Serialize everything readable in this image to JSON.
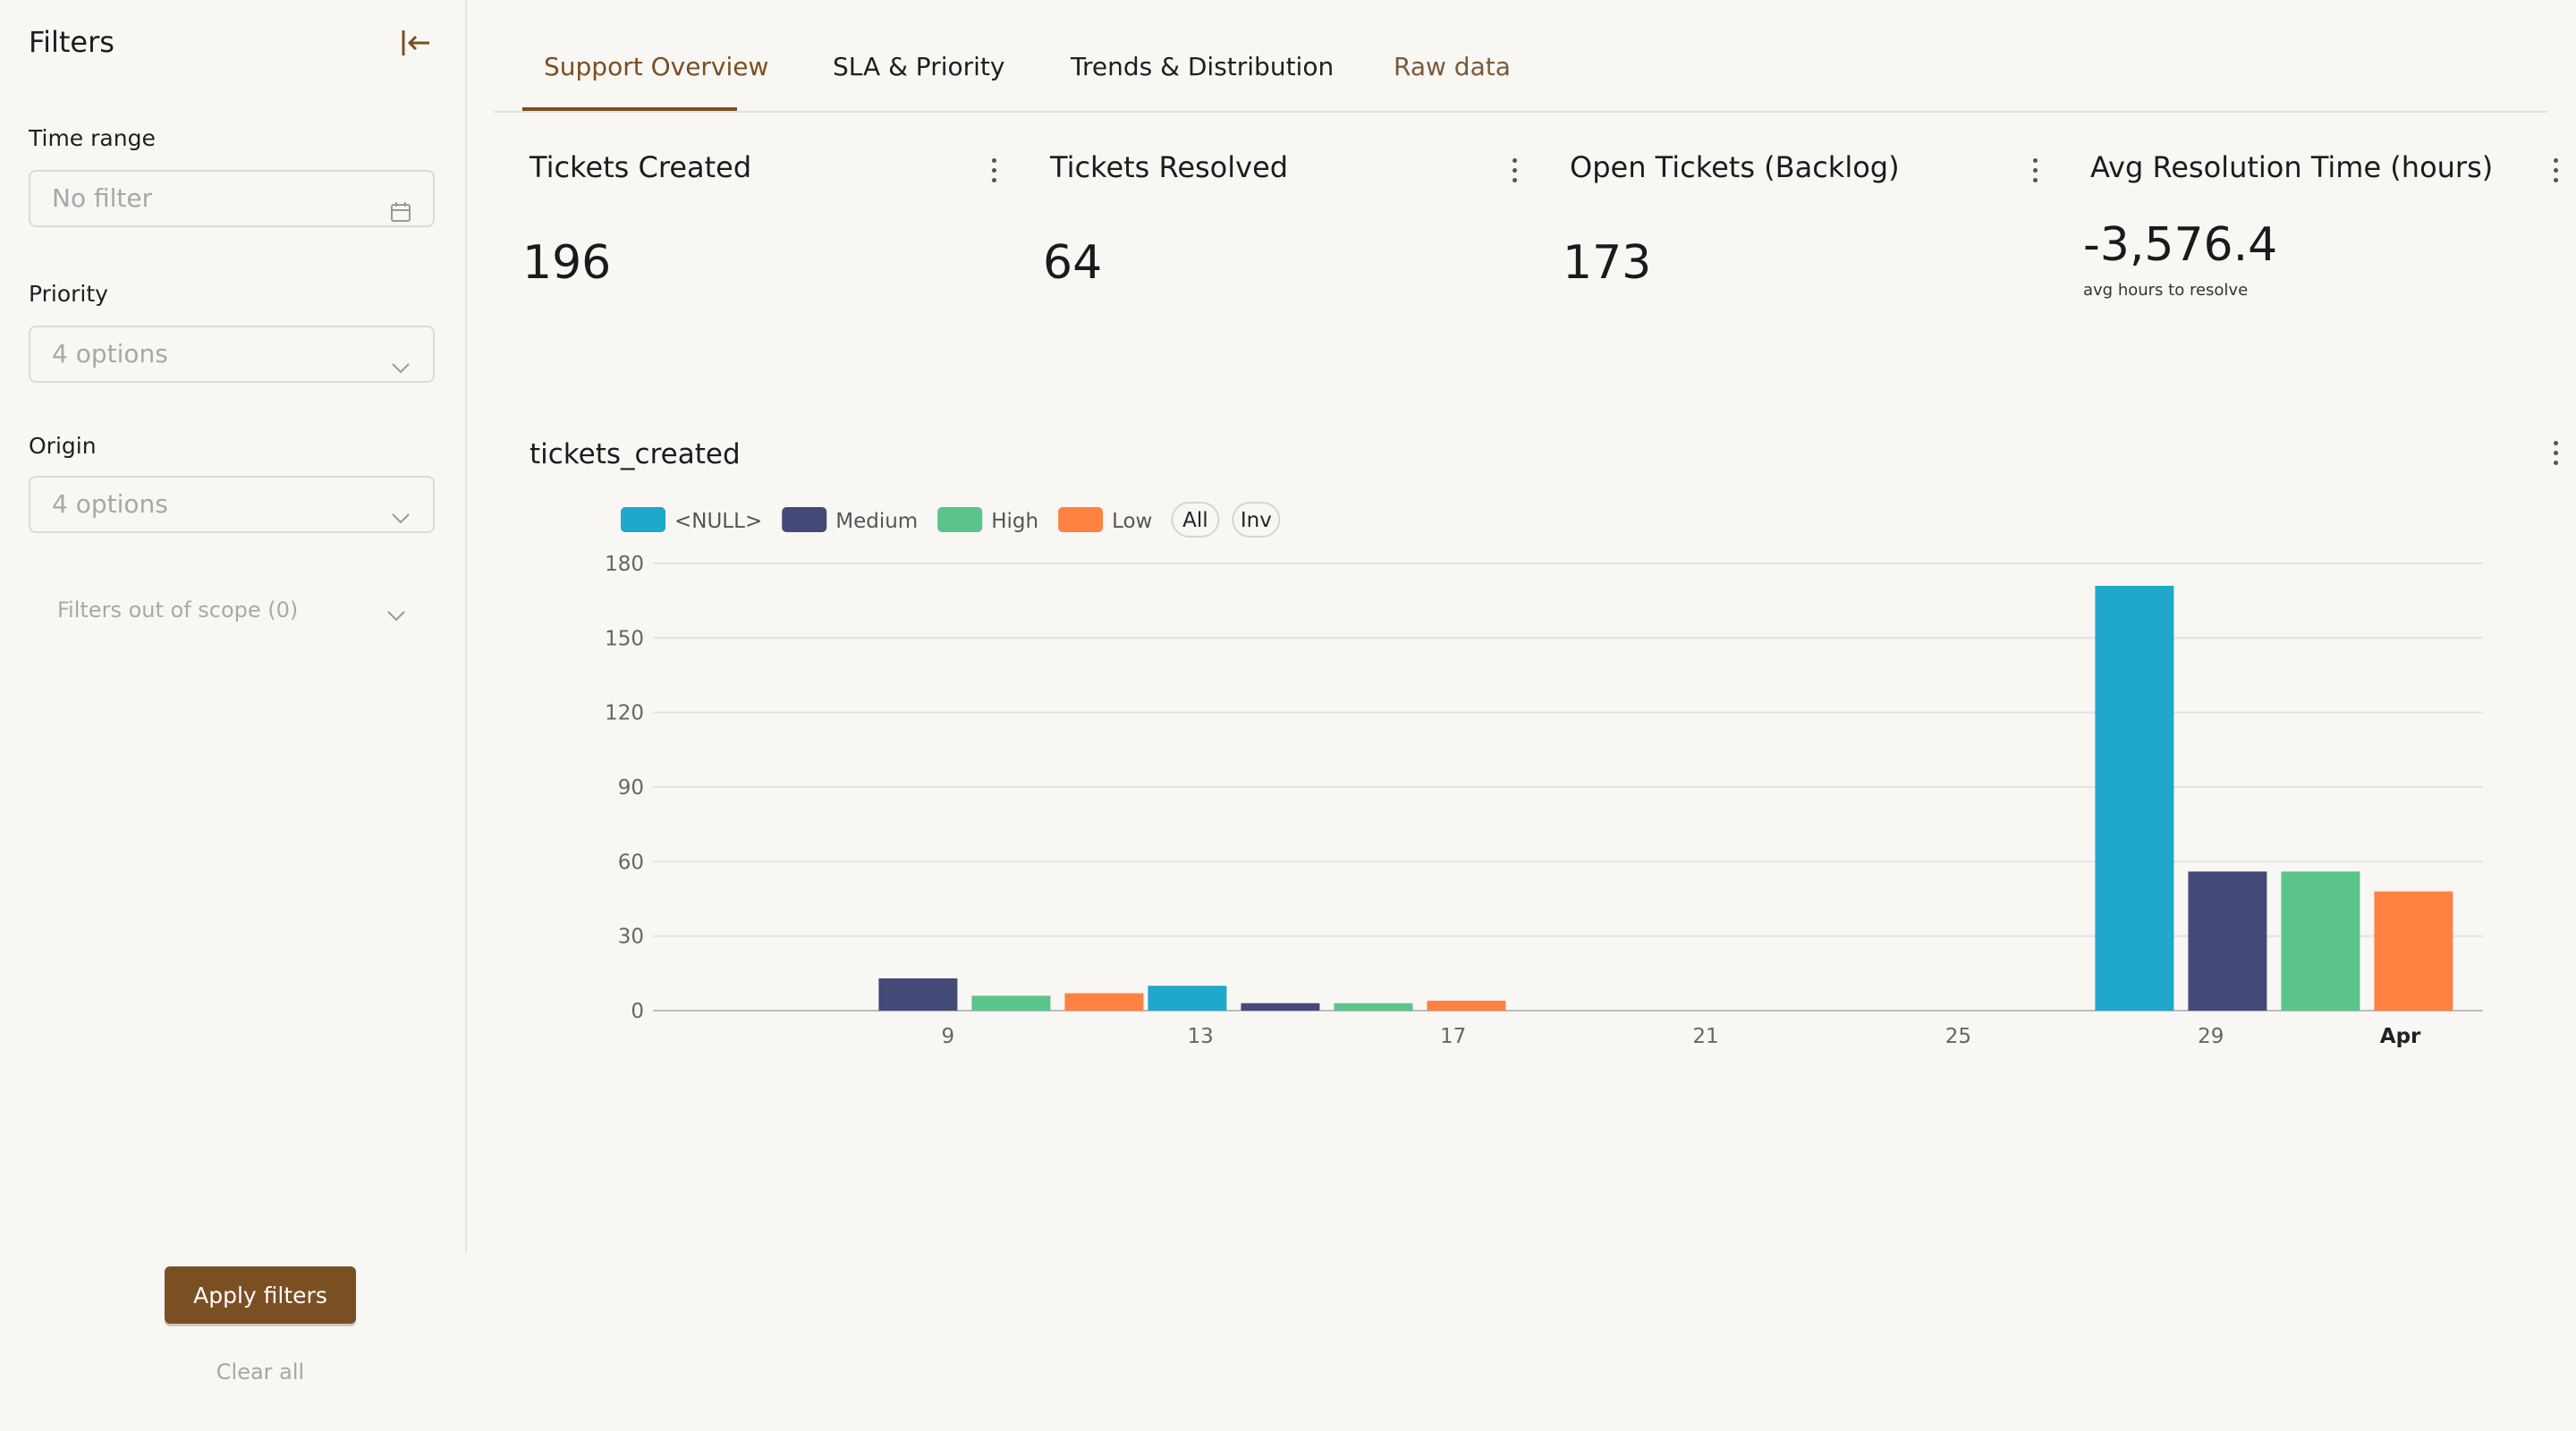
{
  "sidebar": {
    "title": "Filters",
    "filters": [
      {
        "label": "Time range",
        "placeholder": "No filter",
        "icon": "calendar-icon"
      },
      {
        "label": "Priority",
        "placeholder": "4 options",
        "icon": "chevron-down-icon"
      },
      {
        "label": "Origin",
        "placeholder": "4 options",
        "icon": "chevron-down-icon"
      }
    ],
    "out_of_scope": "Filters out of scope (0)",
    "apply_label": "Apply filters",
    "clear_label": "Clear all"
  },
  "tabs": [
    {
      "label": "Support Overview",
      "active": true
    },
    {
      "label": "SLA & Priority",
      "active": false
    },
    {
      "label": "Trends & Distribution",
      "active": false
    },
    {
      "label": "Raw data",
      "active": false
    }
  ],
  "kpis": [
    {
      "title": "Tickets Created",
      "value": "196",
      "sub": ""
    },
    {
      "title": "Tickets Resolved",
      "value": "64",
      "sub": ""
    },
    {
      "title": "Open Tickets (Backlog)",
      "value": "173",
      "sub": ""
    },
    {
      "title": "Avg Resolution Time (hours)",
      "value": "-3,576.4",
      "sub": "avg hours to resolve"
    }
  ],
  "colors": {
    "accent": "#7a4f22",
    "null": "#1fa7cc",
    "medium": "#434a78",
    "high": "#5bc48b",
    "low": "#ff8243"
  },
  "chart_data": {
    "type": "bar",
    "title": "tickets_created",
    "legend_buttons": [
      "All",
      "Inv"
    ],
    "x_ticks": [
      "9",
      "13",
      "17",
      "21",
      "25",
      "29",
      "Apr"
    ],
    "y_ticks": [
      0,
      30,
      60,
      90,
      120,
      150,
      180
    ],
    "ylim": [
      0,
      180
    ],
    "grid": true,
    "legend_position": "top-left",
    "groups": [
      {
        "date": "Mar 10",
        "bars": [
          {
            "series": "Medium",
            "value": 13
          },
          {
            "series": "High",
            "value": 6
          },
          {
            "series": "Low",
            "value": 7
          }
        ]
      },
      {
        "date": "Mar 15",
        "bars": [
          {
            "series": "<NULL>",
            "value": 10
          },
          {
            "series": "Medium",
            "value": 3
          },
          {
            "series": "High",
            "value": 3
          },
          {
            "series": "Low",
            "value": 4
          }
        ]
      },
      {
        "date": "Mar 30",
        "bars": [
          {
            "series": "<NULL>",
            "value": 171
          },
          {
            "series": "Medium",
            "value": 56
          },
          {
            "series": "High",
            "value": 56
          },
          {
            "series": "Low",
            "value": 48
          }
        ]
      }
    ],
    "series": [
      {
        "name": "<NULL>",
        "color": "#1fa7cc"
      },
      {
        "name": "Medium",
        "color": "#434a78"
      },
      {
        "name": "High",
        "color": "#5bc48b"
      },
      {
        "name": "Low",
        "color": "#ff8243"
      }
    ]
  }
}
